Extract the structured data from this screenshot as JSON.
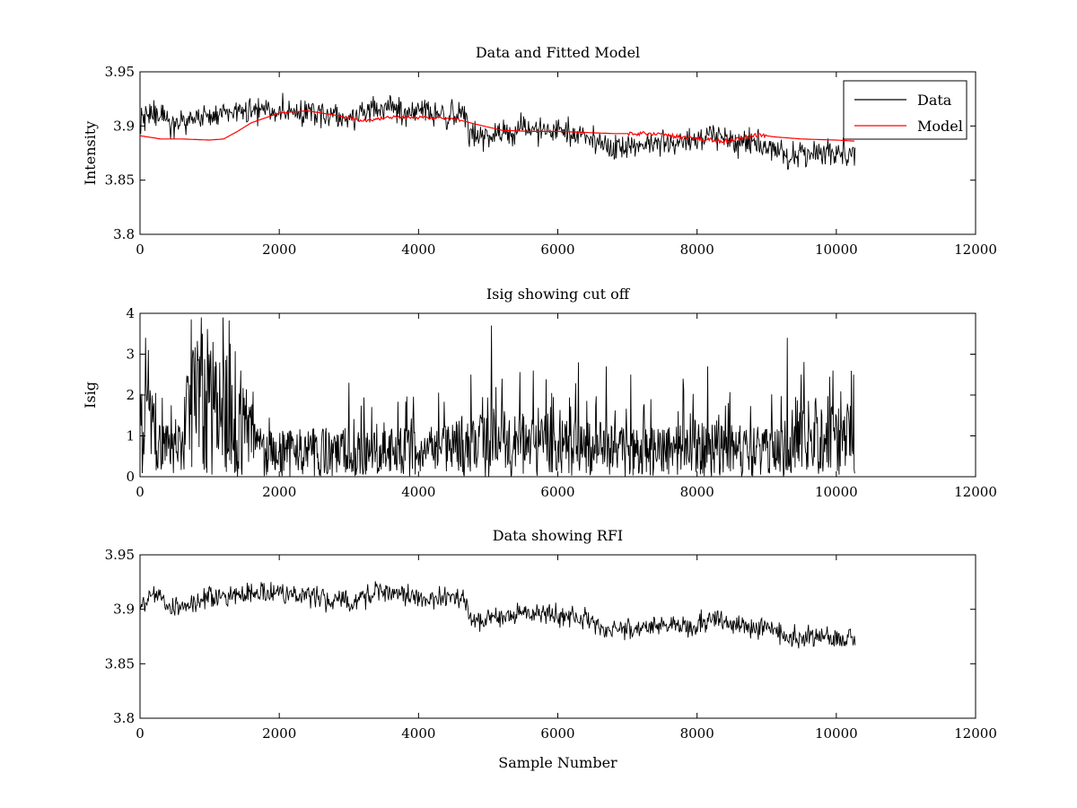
{
  "chart_data": [
    {
      "type": "line",
      "title": "Data and Fitted Model",
      "xlabel": "",
      "ylabel": "Intensity",
      "xlim": [
        0,
        12000
      ],
      "ylim": [
        3.8,
        3.95
      ],
      "xticks": [
        0,
        2000,
        4000,
        6000,
        8000,
        10000,
        12000
      ],
      "xtick_labels": [
        "0",
        "2000",
        "4000",
        "6000",
        "8000",
        "10000",
        "12000"
      ],
      "yticks": [
        3.8,
        3.85,
        3.9,
        3.95
      ],
      "ytick_labels": [
        "3.8",
        "3.85",
        "3.9",
        "3.95"
      ],
      "legend": {
        "position": "top-right",
        "entries": [
          "Data",
          "Model"
        ]
      },
      "series": [
        {
          "name": "Data",
          "color": "#000000",
          "style": "noisy",
          "sample_step": 10,
          "noise_amplitude": 0.011,
          "x": [
            0,
            150,
            500,
            1000,
            1500,
            2000,
            2500,
            3000,
            3400,
            4000,
            4700,
            4720,
            5000,
            5500,
            6000,
            6500,
            6700,
            7000,
            7500,
            8000,
            8200,
            8500,
            9000,
            9300,
            9600,
            10000,
            10270
          ],
          "y": [
            3.9,
            3.915,
            3.9,
            3.91,
            3.913,
            3.915,
            3.912,
            3.905,
            3.918,
            3.912,
            3.91,
            3.892,
            3.89,
            3.897,
            3.895,
            3.89,
            3.88,
            3.882,
            3.886,
            3.885,
            3.893,
            3.885,
            3.883,
            3.873,
            3.874,
            3.875,
            3.873
          ]
        },
        {
          "name": "Model",
          "color": "#ff0000",
          "style": "smooth",
          "x": [
            0,
            300,
            600,
            1000,
            1200,
            1400,
            1600,
            2000,
            2400,
            2800,
            3200,
            3600,
            4000,
            4500,
            4800,
            5200,
            5600,
            6000,
            6400,
            6800,
            7200,
            7600,
            8000,
            8400,
            8600,
            8900,
            9100,
            9500,
            10000,
            10270
          ],
          "y": [
            3.891,
            3.888,
            3.888,
            3.887,
            3.888,
            3.895,
            3.903,
            3.912,
            3.914,
            3.91,
            3.905,
            3.908,
            3.908,
            3.907,
            3.902,
            3.896,
            3.895,
            3.895,
            3.894,
            3.893,
            3.893,
            3.891,
            3.888,
            3.886,
            3.888,
            3.892,
            3.89,
            3.888,
            3.887,
            3.886
          ]
        }
      ]
    },
    {
      "type": "line",
      "title": "Isig showing cut off",
      "xlabel": "",
      "ylabel": "Isig",
      "xlim": [
        0,
        12000
      ],
      "ylim": [
        0,
        4
      ],
      "xticks": [
        0,
        2000,
        4000,
        6000,
        8000,
        10000,
        12000
      ],
      "xtick_labels": [
        "0",
        "2000",
        "4000",
        "6000",
        "8000",
        "10000",
        "12000"
      ],
      "yticks": [
        0,
        1,
        2,
        3,
        4
      ],
      "ytick_labels": [
        "0",
        "1",
        "2",
        "3",
        "4"
      ],
      "series": [
        {
          "color": "#000000",
          "style": "spiky",
          "sample_step": 8,
          "x": [
            0,
            100,
            300,
            500,
            800,
            1000,
            1300,
            1600,
            1700,
            2000,
            3000,
            4000,
            4700,
            5000,
            5300,
            6000,
            6500,
            7000,
            7500,
            8000,
            9000,
            9300,
            9400,
            10000,
            10270
          ],
          "y": [
            1.0,
            1.2,
            0.6,
            0.7,
            1.7,
            1.6,
            1.4,
            1.0,
            0.6,
            0.6,
            0.6,
            0.6,
            0.7,
            1.0,
            0.8,
            0.7,
            0.7,
            0.6,
            0.6,
            0.7,
            0.6,
            0.7,
            1.0,
            0.9,
            0.9
          ],
          "peaks": [
            [
              80,
              3.4
            ],
            [
              120,
              3.1
            ],
            [
              900,
              3.5
            ],
            [
              1050,
              3.3
            ],
            [
              1200,
              2.9
            ],
            [
              1450,
              2.6
            ],
            [
              3000,
              2.3
            ],
            [
              4750,
              2.5
            ],
            [
              5050,
              3.7
            ],
            [
              5200,
              2.4
            ],
            [
              5650,
              2.6
            ],
            [
              6300,
              2.8
            ],
            [
              6700,
              2.7
            ],
            [
              7050,
              2.5
            ],
            [
              7800,
              2.4
            ],
            [
              8150,
              2.7
            ],
            [
              9300,
              3.4
            ],
            [
              9500,
              2.5
            ],
            [
              9950,
              2.6
            ],
            [
              10250,
              2.5
            ]
          ]
        }
      ]
    },
    {
      "type": "line",
      "title": "Data showing RFI",
      "xlabel": "Sample Number",
      "ylabel": "",
      "xlim": [
        0,
        12000
      ],
      "ylim": [
        3.8,
        3.95
      ],
      "xticks": [
        0,
        2000,
        4000,
        6000,
        8000,
        10000,
        12000
      ],
      "xtick_labels": [
        "0",
        "2000",
        "4000",
        "6000",
        "8000",
        "10000",
        "12000"
      ],
      "yticks": [
        3.8,
        3.85,
        3.9,
        3.95
      ],
      "ytick_labels": [
        "3.8",
        "3.85",
        "3.9",
        "3.95"
      ],
      "series": [
        {
          "color": "#000000",
          "style": "noisy",
          "sample_step": 10,
          "noise_amplitude": 0.009,
          "x": [
            0,
            150,
            500,
            1000,
            1500,
            2000,
            2500,
            3000,
            3400,
            4000,
            4700,
            4720,
            5000,
            5500,
            6000,
            6500,
            6700,
            7000,
            7500,
            8000,
            8200,
            8500,
            9000,
            9300,
            9600,
            10000,
            10270
          ],
          "y": [
            3.9,
            3.915,
            3.9,
            3.91,
            3.913,
            3.915,
            3.912,
            3.905,
            3.918,
            3.912,
            3.91,
            3.892,
            3.89,
            3.897,
            3.895,
            3.89,
            3.88,
            3.882,
            3.886,
            3.885,
            3.893,
            3.885,
            3.883,
            3.873,
            3.874,
            3.875,
            3.873
          ]
        }
      ]
    }
  ]
}
